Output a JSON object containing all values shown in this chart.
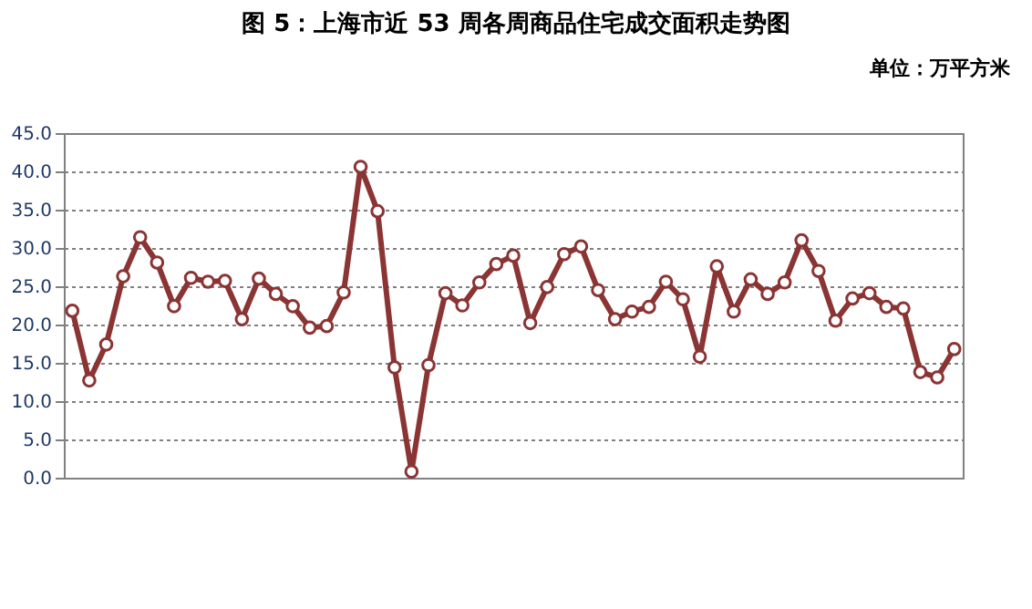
{
  "chart_data": {
    "type": "line",
    "title": "图 5：上海市近 53 周各周商品住宅成交面积走势图",
    "annotations": [
      "单位：万平方米"
    ],
    "categories": [
      null,
      null,
      null,
      null,
      null,
      null,
      null,
      null,
      null,
      null,
      null,
      null,
      null,
      null,
      null,
      null,
      null,
      null,
      null,
      null,
      null,
      null,
      null,
      null,
      null,
      null,
      null,
      null,
      null,
      null,
      null,
      null,
      null,
      null,
      null,
      null,
      null,
      null,
      null,
      null,
      null,
      null,
      null,
      null,
      null,
      null,
      null,
      null,
      null,
      null,
      null,
      null,
      null
    ],
    "series": [
      {
        "color": "#8b3434",
        "values": [
          21.8,
          12.7,
          17.4,
          26.3,
          31.4,
          28.1,
          22.4,
          26.1,
          25.6,
          25.7,
          20.7,
          26.0,
          24.0,
          22.4,
          19.6,
          19.8,
          24.2,
          40.6,
          34.8,
          14.4,
          0.8,
          14.7,
          24.1,
          22.5,
          25.5,
          27.9,
          29.0,
          20.2,
          24.9,
          29.2,
          30.2,
          24.5,
          20.7,
          21.7,
          22.3,
          25.6,
          23.3,
          15.8,
          27.6,
          21.7,
          25.9,
          24.0,
          25.5,
          31.0,
          27.0,
          20.5,
          23.4,
          24.1,
          22.3,
          22.1,
          13.8,
          13.1,
          16.8
        ]
      }
    ],
    "ylim": [
      0,
      45
    ],
    "yticks": [
      {
        "value": 0,
        "label": "0.0"
      },
      {
        "value": 5,
        "label": "5.0"
      },
      {
        "value": 10,
        "label": "10.0"
      },
      {
        "value": 15,
        "label": "15.0"
      },
      {
        "value": 20,
        "label": "20.0"
      },
      {
        "value": 25,
        "label": "25.0"
      },
      {
        "value": 30,
        "label": "30.0"
      },
      {
        "value": 35,
        "label": "35.0"
      },
      {
        "value": 40,
        "label": "40.0"
      },
      {
        "value": 45,
        "label": "45.0"
      }
    ],
    "grid": "y",
    "marker": "circle",
    "line_style": "solid",
    "tick_labels": "y"
  }
}
